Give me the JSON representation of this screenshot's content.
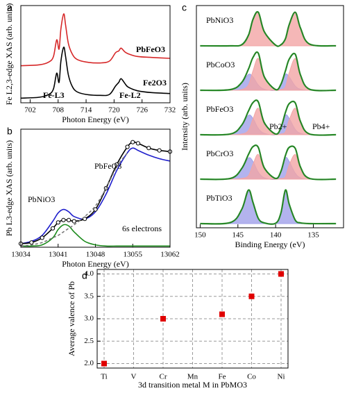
{
  "chart_data": [
    {
      "type": "line",
      "panel_label": "a",
      "xlabel": "Photon Energy (eV)",
      "ylabel": "Fe L2,3-edge XAS (arb. units)",
      "x": [
        700,
        704,
        706,
        707,
        707.7,
        708.2,
        708.6,
        709.2,
        709.6,
        710.2,
        711,
        712,
        714,
        717,
        719,
        720.3,
        721,
        721.5,
        722.3,
        723,
        725,
        728,
        732
      ],
      "xlim": [
        700,
        732
      ],
      "xticks": [
        702,
        708,
        714,
        720,
        726,
        732
      ],
      "ylim": [
        0,
        10.5
      ],
      "series": [
        {
          "name": "PbFeO3",
          "color": "#d62728",
          "values": [
            4.0,
            4.1,
            4.4,
            5.0,
            6.8,
            5.8,
            8.0,
            9.6,
            8.4,
            6.4,
            5.3,
            4.7,
            4.4,
            4.3,
            4.5,
            5.4,
            5.6,
            5.9,
            5.5,
            5.3,
            5.0,
            4.9,
            4.8
          ]
        },
        {
          "name": "Fe2O3",
          "color": "#000000",
          "values": [
            0.5,
            0.6,
            0.9,
            1.5,
            3.2,
            2.2,
            4.5,
            6.0,
            5.0,
            3.0,
            1.8,
            1.2,
            0.9,
            0.8,
            0.9,
            1.8,
            2.2,
            2.6,
            2.1,
            1.7,
            1.3,
            1.1,
            1.0
          ]
        }
      ],
      "annotations": [
        {
          "text": "Fe-L3",
          "color": "#1a8a5a"
        },
        {
          "text": "Fe-L2",
          "color": "#1a8a5a"
        }
      ]
    },
    {
      "type": "line",
      "panel_label": "b",
      "xlabel": "Photon Energy (eV)",
      "ylabel": "Pb L3-edge XAS (arb. units)",
      "x": [
        13034,
        13036,
        13038,
        13040,
        13041,
        13042,
        13043,
        13044,
        13046,
        13048,
        13050,
        13052,
        13054,
        13055,
        13056,
        13058,
        13060,
        13062
      ],
      "xlim": [
        13034,
        13062
      ],
      "xticks": [
        13034,
        13041,
        13048,
        13055,
        13062
      ],
      "ylim": [
        0,
        10
      ],
      "series": [
        {
          "name": "PbNiO3",
          "color": "#1f1fcc",
          "values": [
            0.3,
            0.5,
            1.0,
            2.2,
            2.9,
            3.2,
            3.0,
            2.6,
            2.4,
            3.0,
            4.5,
            6.5,
            8.0,
            8.4,
            8.2,
            7.8,
            7.5,
            7.3
          ]
        },
        {
          "name": "PbFeO3",
          "color": "#000000",
          "markers": true,
          "values": [
            0.3,
            0.4,
            0.8,
            1.6,
            2.1,
            2.3,
            2.3,
            2.2,
            2.4,
            3.2,
            5.0,
            7.0,
            8.5,
            8.9,
            8.8,
            8.4,
            8.2,
            8.1
          ]
        },
        {
          "name": "6s electrons",
          "color": "#1a8a1a",
          "values": [
            0.1,
            0.1,
            0.2,
            0.8,
            1.5,
            1.9,
            1.8,
            1.3,
            0.5,
            0.2,
            0.1,
            0.1,
            0.1,
            0.1,
            0.1,
            0.1,
            0.1,
            0.1
          ]
        },
        {
          "color": "#777777",
          "dashed": true,
          "values": [
            0.1,
            0.2,
            0.4,
            0.8,
            1.0,
            1.3,
            1.6,
            1.9,
            2.6,
            3.5,
            5.0,
            6.8,
            8.0,
            null,
            null,
            null,
            null,
            null
          ]
        }
      ]
    },
    {
      "type": "area",
      "panel_label": "c",
      "xlabel": "Binding Energy (eV)",
      "ylabel": "Intensity (arb. units)",
      "x": [
        150,
        146,
        144.5,
        143.6,
        143,
        142.3,
        141.5,
        140,
        139.3,
        138.7,
        138.2,
        137.4,
        136.7,
        135.5,
        132
      ],
      "xlim": [
        150.5,
        131
      ],
      "xticks": [
        150,
        145,
        140,
        135
      ],
      "ylim": [
        0,
        1.1
      ],
      "fit_color": "#2a9a2a",
      "panels": [
        {
          "name": "PbNiO3",
          "total": [
            0,
            0,
            0.03,
            0.3,
            0.75,
            0.95,
            0.4,
            0.02,
            0.03,
            0.2,
            0.6,
            0.95,
            0.5,
            0.05,
            0
          ],
          "series": [
            {
              "color": "#f2a5a5",
              "values": [
                0,
                0,
                0.03,
                0.3,
                0.75,
                0.95,
                0.4,
                0.02,
                0.03,
                0.2,
                0.6,
                0.95,
                0.5,
                0.05,
                0
              ]
            }
          ]
        },
        {
          "name": "PbCoO3",
          "total": [
            0,
            0.02,
            0.22,
            0.6,
            0.93,
            1.05,
            0.38,
            0.02,
            0.17,
            0.55,
            0.88,
            1.02,
            0.43,
            0.03,
            0
          ],
          "series": [
            {
              "color": "#a0a0ea",
              "values": [
                0,
                0.02,
                0.2,
                0.45,
                0.38,
                0.15,
                0.03,
                0,
                0.15,
                0.45,
                0.38,
                0.12,
                0.03,
                0,
                0
              ]
            },
            {
              "color": "#f2a5a5",
              "values": [
                0,
                0,
                0.02,
                0.15,
                0.55,
                0.9,
                0.35,
                0.02,
                0.02,
                0.1,
                0.5,
                0.9,
                0.4,
                0.03,
                0
              ]
            }
          ]
        },
        {
          "name": "PbFeO3",
          "total": [
            0,
            0.02,
            0.27,
            0.67,
            0.91,
            0.93,
            0.34,
            0.02,
            0.2,
            0.63,
            0.88,
            0.9,
            0.37,
            0.02,
            0
          ],
          "series": [
            {
              "color": "#a0a0ea",
              "values": [
                0,
                0.02,
                0.25,
                0.55,
                0.46,
                0.18,
                0.04,
                0,
                0.18,
                0.55,
                0.46,
                0.15,
                0.04,
                0,
                0
              ]
            },
            {
              "color": "#f2a5a5",
              "values": [
                0,
                0,
                0.02,
                0.12,
                0.45,
                0.75,
                0.3,
                0.02,
                0.02,
                0.08,
                0.42,
                0.75,
                0.33,
                0.02,
                0
              ]
            }
          ]
        },
        {
          "name": "PbCrO3",
          "total": [
            0,
            0.02,
            0.3,
            0.7,
            0.92,
            0.9,
            0.32,
            0.02,
            0.22,
            0.67,
            0.9,
            0.87,
            0.34,
            0.02,
            0
          ],
          "series": [
            {
              "color": "#a0a0ea",
              "values": [
                0,
                0.02,
                0.28,
                0.6,
                0.5,
                0.2,
                0.04,
                0,
                0.2,
                0.6,
                0.5,
                0.17,
                0.04,
                0,
                0
              ]
            },
            {
              "color": "#f2a5a5",
              "values": [
                0,
                0,
                0.02,
                0.1,
                0.42,
                0.7,
                0.28,
                0.02,
                0.02,
                0.07,
                0.4,
                0.7,
                0.3,
                0.02,
                0
              ]
            }
          ]
        },
        {
          "name": "PbTiO3",
          "total": [
            0,
            0.03,
            0.4,
            0.95,
            0.6,
            0.15,
            0.02,
            0.01,
            0.3,
            0.95,
            0.55,
            0.1,
            0.02,
            0,
            0
          ],
          "series": [
            {
              "color": "#a0a0ea",
              "values": [
                0,
                0.03,
                0.4,
                0.95,
                0.6,
                0.15,
                0.02,
                0.01,
                0.3,
                0.95,
                0.55,
                0.1,
                0.02,
                0,
                0
              ]
            }
          ]
        }
      ],
      "annotations": [
        {
          "text": "Pb2+",
          "color": "#1f1fcc"
        },
        {
          "text": "Pb4+",
          "color": "#d62728"
        }
      ]
    },
    {
      "type": "scatter",
      "panel_label": "d",
      "xlabel": "3d transition metal M in PbMO3",
      "ylabel": "Average valence of Pb",
      "categories": [
        "Ti",
        "V",
        "Cr",
        "Mn",
        "Fe",
        "Co",
        "Ni"
      ],
      "values": [
        2.0,
        null,
        3.0,
        null,
        3.1,
        3.5,
        4.0
      ],
      "color": "#e00000",
      "ylim": [
        1.9,
        4.1
      ],
      "yticks": [
        {
          "value": 2,
          "label": "2.0"
        },
        2.5,
        {
          "value": 3,
          "label": "3.0"
        },
        3.5,
        {
          "value": 4,
          "label": "4.0"
        }
      ],
      "grid": true
    }
  ]
}
